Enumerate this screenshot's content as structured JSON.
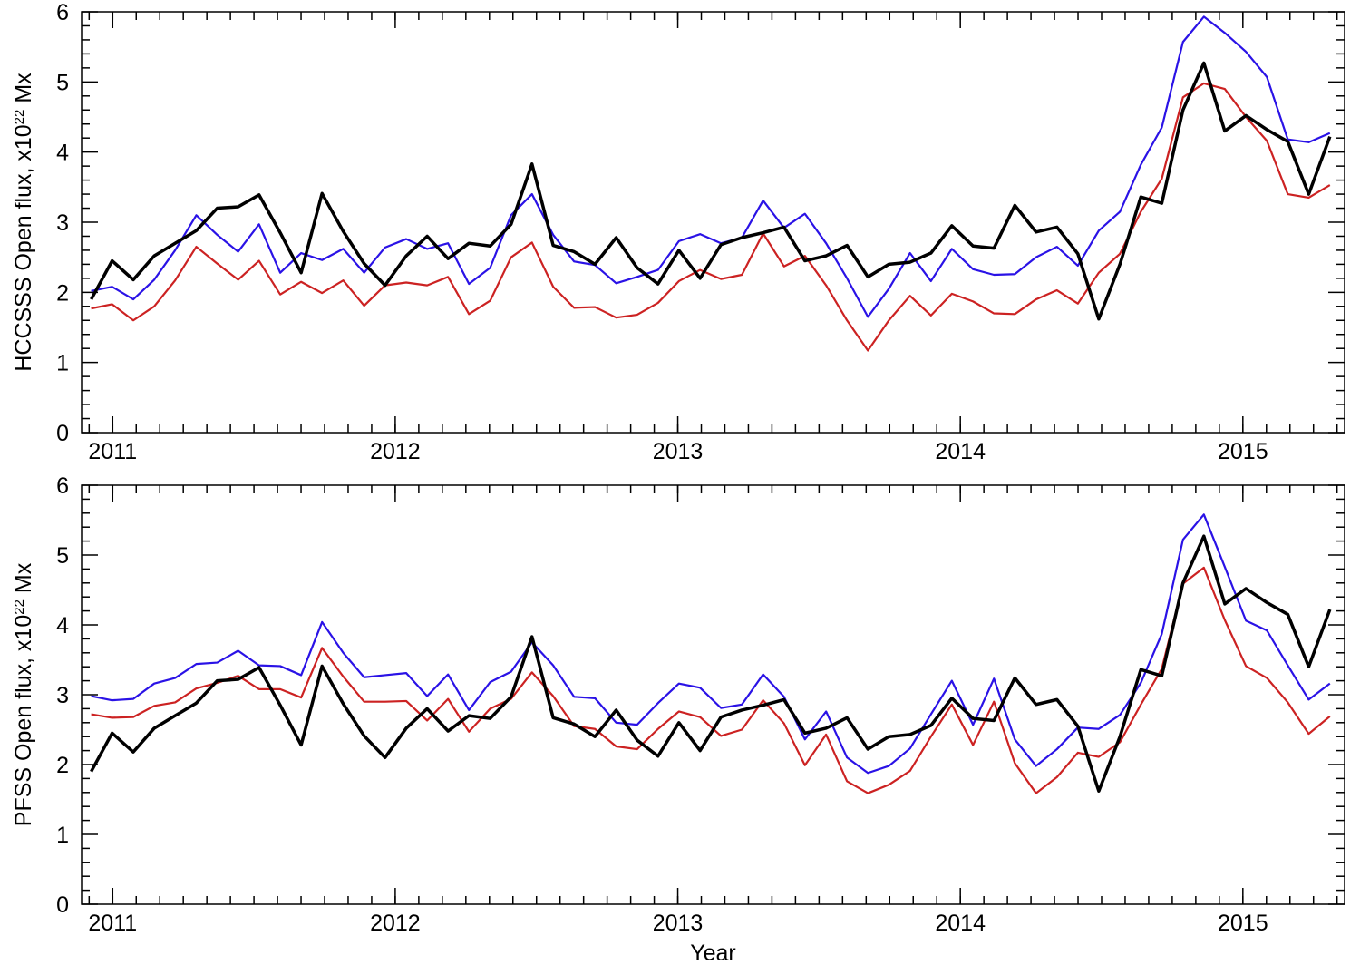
{
  "chart_data": [
    {
      "type": "line",
      "ylabel_parts": [
        "HCCSSS Open flux, x10",
        "22",
        " Mx"
      ],
      "x": [
        2010.924,
        2010.998,
        2011.073,
        2011.147,
        2011.221,
        2011.296,
        2011.37,
        2011.444,
        2011.518,
        2011.593,
        2011.667,
        2011.741,
        2011.816,
        2011.89,
        2011.964,
        2012.039,
        2012.113,
        2012.187,
        2012.261,
        2012.336,
        2012.41,
        2012.484,
        2012.559,
        2012.633,
        2012.707,
        2012.782,
        2012.856,
        2012.93,
        2013.004,
        2013.079,
        2013.153,
        2013.227,
        2013.302,
        2013.376,
        2013.45,
        2013.525,
        2013.599,
        2013.673,
        2013.747,
        2013.822,
        2013.896,
        2013.97,
        2014.045,
        2014.119,
        2014.193,
        2014.268,
        2014.342,
        2014.416,
        2014.49,
        2014.565,
        2014.639,
        2014.713,
        2014.788,
        2014.862,
        2014.936,
        2015.011,
        2015.085,
        2015.159,
        2015.233,
        2015.308
      ],
      "series": [
        {
          "color": "#cc2222",
          "values": [
            1.77,
            1.83,
            1.6,
            1.8,
            2.17,
            2.65,
            2.41,
            2.18,
            2.45,
            1.97,
            2.15,
            1.99,
            2.17,
            1.81,
            2.1,
            2.14,
            2.1,
            2.22,
            1.69,
            1.88,
            2.5,
            2.71,
            2.08,
            1.78,
            1.79,
            1.64,
            1.68,
            1.85,
            2.16,
            2.32,
            2.19,
            2.25,
            2.84,
            2.37,
            2.52,
            2.1,
            1.6,
            1.17,
            1.6,
            1.95,
            1.67,
            1.98,
            1.87,
            1.7,
            1.69,
            1.9,
            2.03,
            1.84,
            2.28,
            2.55,
            3.15,
            3.62,
            4.78,
            4.98,
            4.9,
            4.5,
            4.16,
            3.4,
            3.35,
            3.53
          ]
        },
        {
          "color": "#2a12e6",
          "values": [
            2.02,
            2.08,
            1.9,
            2.18,
            2.6,
            3.1,
            2.82,
            2.58,
            2.97,
            2.28,
            2.56,
            2.46,
            2.62,
            2.28,
            2.64,
            2.76,
            2.62,
            2.7,
            2.12,
            2.35,
            3.1,
            3.4,
            2.82,
            2.44,
            2.39,
            2.13,
            2.22,
            2.32,
            2.73,
            2.83,
            2.7,
            2.78,
            3.31,
            2.92,
            3.12,
            2.7,
            2.2,
            1.65,
            2.05,
            2.56,
            2.16,
            2.62,
            2.33,
            2.25,
            2.26,
            2.5,
            2.65,
            2.38,
            2.88,
            3.15,
            3.82,
            4.35,
            5.57,
            5.93,
            5.7,
            5.43,
            5.07,
            4.18,
            4.14,
            4.27
          ]
        },
        {
          "color": "#000000",
          "values": [
            1.9,
            2.45,
            2.18,
            2.52,
            2.7,
            2.88,
            3.2,
            3.22,
            3.39,
            2.85,
            2.28,
            3.41,
            2.87,
            2.41,
            2.1,
            2.52,
            2.8,
            2.48,
            2.7,
            2.66,
            2.97,
            3.83,
            2.67,
            2.58,
            2.4,
            2.78,
            2.35,
            2.12,
            2.6,
            2.2,
            2.68,
            2.78,
            2.85,
            2.93,
            2.45,
            2.52,
            2.67,
            2.22,
            2.4,
            2.43,
            2.56,
            2.95,
            2.66,
            2.63,
            3.24,
            2.86,
            2.93,
            2.55,
            1.62,
            2.4,
            3.36,
            3.27,
            4.6,
            5.27,
            4.3,
            4.52,
            4.32,
            4.15,
            3.4,
            4.22
          ]
        }
      ],
      "xlim": [
        2010.89,
        2015.36
      ],
      "xticks": [
        2011,
        2012,
        2013,
        2014,
        2015
      ],
      "xminor": 12,
      "ylim": [
        0,
        6
      ],
      "yticks": [
        0,
        1,
        2,
        3,
        4,
        5,
        6
      ],
      "yminor": 5
    },
    {
      "type": "line",
      "ylabel_parts": [
        "PFSS Open flux, x10",
        "22",
        " Mx"
      ],
      "xlabel": "Year",
      "x": [
        2010.924,
        2010.998,
        2011.073,
        2011.147,
        2011.221,
        2011.296,
        2011.37,
        2011.444,
        2011.518,
        2011.593,
        2011.667,
        2011.741,
        2011.816,
        2011.89,
        2011.964,
        2012.039,
        2012.113,
        2012.187,
        2012.261,
        2012.336,
        2012.41,
        2012.484,
        2012.559,
        2012.633,
        2012.707,
        2012.782,
        2012.856,
        2012.93,
        2013.004,
        2013.079,
        2013.153,
        2013.227,
        2013.302,
        2013.376,
        2013.45,
        2013.525,
        2013.599,
        2013.673,
        2013.747,
        2013.822,
        2013.896,
        2013.97,
        2014.045,
        2014.119,
        2014.193,
        2014.268,
        2014.342,
        2014.416,
        2014.49,
        2014.565,
        2014.639,
        2014.713,
        2014.788,
        2014.862,
        2014.936,
        2015.011,
        2015.085,
        2015.159,
        2015.233,
        2015.308
      ],
      "series": [
        {
          "color": "#cc2222",
          "values": [
            2.72,
            2.67,
            2.68,
            2.84,
            2.89,
            3.09,
            3.17,
            3.27,
            3.08,
            3.08,
            2.96,
            3.67,
            3.26,
            2.9,
            2.9,
            2.91,
            2.63,
            2.94,
            2.47,
            2.8,
            2.94,
            3.32,
            2.98,
            2.55,
            2.51,
            2.26,
            2.22,
            2.51,
            2.76,
            2.68,
            2.41,
            2.5,
            2.92,
            2.59,
            1.99,
            2.43,
            1.76,
            1.59,
            1.71,
            1.91,
            2.4,
            2.86,
            2.28,
            2.9,
            2.02,
            1.59,
            1.82,
            2.17,
            2.11,
            2.32,
            2.86,
            3.37,
            4.59,
            4.82,
            4.07,
            3.41,
            3.24,
            2.89,
            2.44,
            2.69
          ]
        },
        {
          "color": "#2a12e6",
          "values": [
            2.98,
            2.92,
            2.94,
            3.16,
            3.24,
            3.44,
            3.46,
            3.63,
            3.42,
            3.41,
            3.28,
            4.04,
            3.6,
            3.25,
            3.28,
            3.31,
            2.98,
            3.29,
            2.78,
            3.18,
            3.33,
            3.75,
            3.42,
            2.97,
            2.95,
            2.6,
            2.57,
            2.88,
            3.16,
            3.1,
            2.81,
            2.86,
            3.29,
            2.97,
            2.36,
            2.76,
            2.1,
            1.88,
            1.98,
            2.23,
            2.72,
            3.2,
            2.57,
            3.23,
            2.36,
            1.98,
            2.22,
            2.53,
            2.51,
            2.71,
            3.17,
            3.87,
            5.22,
            5.58,
            4.83,
            4.06,
            3.92,
            3.42,
            2.93,
            3.16
          ]
        },
        {
          "color": "#000000",
          "values": [
            1.9,
            2.45,
            2.18,
            2.52,
            2.7,
            2.88,
            3.2,
            3.22,
            3.39,
            2.85,
            2.28,
            3.41,
            2.87,
            2.41,
            2.1,
            2.52,
            2.8,
            2.48,
            2.7,
            2.66,
            2.97,
            3.83,
            2.67,
            2.58,
            2.4,
            2.78,
            2.35,
            2.12,
            2.6,
            2.2,
            2.68,
            2.78,
            2.85,
            2.93,
            2.45,
            2.52,
            2.67,
            2.22,
            2.4,
            2.43,
            2.56,
            2.95,
            2.66,
            2.63,
            3.24,
            2.86,
            2.93,
            2.55,
            1.62,
            2.4,
            3.36,
            3.27,
            4.6,
            5.27,
            4.3,
            4.52,
            4.32,
            4.15,
            3.4,
            4.22
          ]
        }
      ],
      "xlim": [
        2010.89,
        2015.36
      ],
      "xticks": [
        2011,
        2012,
        2013,
        2014,
        2015
      ],
      "xminor": 12,
      "ylim": [
        0,
        6
      ],
      "yticks": [
        0,
        1,
        2,
        3,
        4,
        5,
        6
      ],
      "yminor": 5
    }
  ]
}
